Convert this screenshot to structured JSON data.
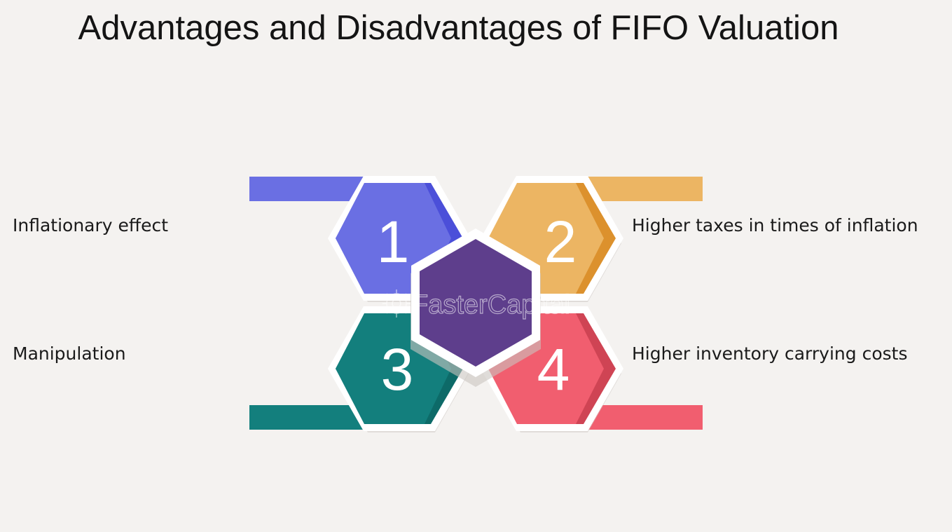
{
  "title": "Advantages and Disadvantages of FIFO Valuation",
  "items": [
    {
      "number": "1",
      "label": "Inflationary effect",
      "color": "#6a6fe3",
      "shade": "#4b4fd9"
    },
    {
      "number": "2",
      "label": "Higher taxes in times of inflation",
      "color": "#ecb563",
      "shade": "#dc912d"
    },
    {
      "number": "3",
      "label": "Manipulation",
      "color": "#137f7d",
      "shade": "#0d6a68"
    },
    {
      "number": "4",
      "label": "Higher inventory carrying costs",
      "color": "#f15e6f",
      "shade": "#cf4454"
    }
  ],
  "center_color": "#5e3e8c",
  "watermark": "FasterCapital"
}
